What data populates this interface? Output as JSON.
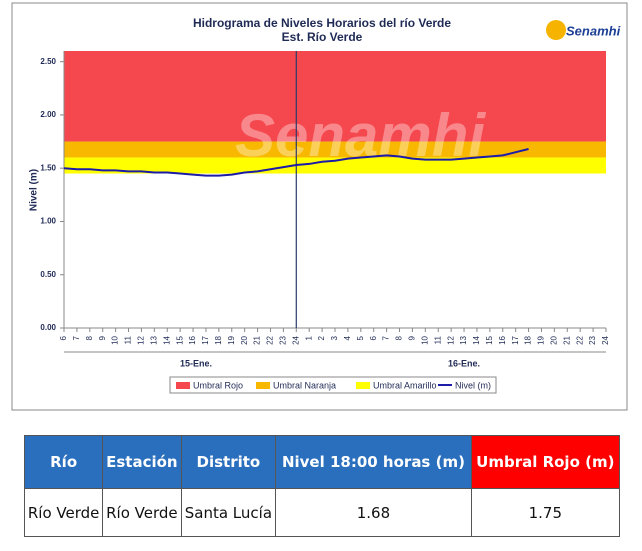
{
  "chart_data": {
    "type": "line",
    "title": "Hidrograma de Niveles Horarios del río Verde",
    "subtitle": "Est. Río Verde",
    "logo": "Senamhi",
    "ylabel": "Nivel (m)",
    "x_groups": [
      "15-Ene.",
      "16-Ene."
    ],
    "vline": 24,
    "xlim": [
      6,
      48
    ],
    "xticks": [
      6,
      7,
      8,
      9,
      10,
      11,
      12,
      13,
      14,
      15,
      16,
      17,
      18,
      19,
      20,
      21,
      22,
      23,
      24,
      {
        "value": 25,
        "label": "1"
      },
      {
        "value": 26,
        "label": "2"
      },
      {
        "value": 27,
        "label": "3"
      },
      {
        "value": 28,
        "label": "4"
      },
      {
        "value": 29,
        "label": "5"
      },
      {
        "value": 30,
        "label": "6"
      },
      {
        "value": 31,
        "label": "7"
      },
      {
        "value": 32,
        "label": "8"
      },
      {
        "value": 33,
        "label": "9"
      },
      {
        "value": 34,
        "label": "10"
      },
      {
        "value": 35,
        "label": "11"
      },
      {
        "value": 36,
        "label": "12"
      },
      {
        "value": 37,
        "label": "13"
      },
      {
        "value": 38,
        "label": "14"
      },
      {
        "value": 39,
        "label": "15"
      },
      {
        "value": 40,
        "label": "16"
      },
      {
        "value": 41,
        "label": "17"
      },
      {
        "value": 42,
        "label": "18"
      },
      {
        "value": 43,
        "label": "19"
      },
      {
        "value": 44,
        "label": "20"
      },
      {
        "value": 45,
        "label": "21"
      },
      {
        "value": 46,
        "label": "22"
      },
      {
        "value": 47,
        "label": "23"
      },
      {
        "value": 48,
        "label": "24"
      }
    ],
    "ylim": [
      0,
      2.6
    ],
    "yticks": [
      {
        "value": 0,
        "label": "0.00"
      },
      {
        "value": 0.5,
        "label": "0.50"
      },
      {
        "value": 1,
        "label": "1.00"
      },
      {
        "value": 1.5,
        "label": "1.50"
      },
      {
        "value": 2,
        "label": "2.00"
      },
      {
        "value": 2.5,
        "label": "2.50"
      }
    ],
    "thresholds": [
      {
        "name": "Umbral Rojo",
        "color": "#f5484e",
        "value": 1.75
      },
      {
        "name": "Umbral Naranja",
        "color": "#f8b800",
        "value": 1.6
      },
      {
        "name": "Umbral Amarillo",
        "color": "#ffff00",
        "value": 1.45
      }
    ],
    "series": [
      {
        "name": "Nivel (m)",
        "color": "#1c1ca8",
        "x": [
          6,
          7,
          8,
          9,
          10,
          11,
          12,
          13,
          14,
          15,
          16,
          17,
          18,
          19,
          20,
          21,
          22,
          23,
          24,
          25,
          26,
          27,
          28,
          29,
          30,
          31,
          32,
          33,
          34,
          35,
          36,
          37,
          38,
          39,
          40,
          41,
          42
        ],
        "values": [
          1.5,
          1.49,
          1.49,
          1.48,
          1.48,
          1.47,
          1.47,
          1.46,
          1.46,
          1.45,
          1.44,
          1.43,
          1.43,
          1.44,
          1.46,
          1.47,
          1.49,
          1.51,
          1.53,
          1.54,
          1.56,
          1.57,
          1.59,
          1.6,
          1.61,
          1.62,
          1.61,
          1.59,
          1.58,
          1.58,
          1.58,
          1.59,
          1.6,
          1.61,
          1.62,
          1.65,
          1.68
        ]
      }
    ]
  },
  "table": {
    "header": [
      "Río",
      "Estación",
      "Distrito",
      "Nivel 18:00 horas (m)",
      "Umbral Rojo (m)"
    ],
    "rows": [
      [
        "Río Verde",
        "Río Verde",
        "Santa Lucía",
        1.68,
        1.75
      ]
    ]
  }
}
